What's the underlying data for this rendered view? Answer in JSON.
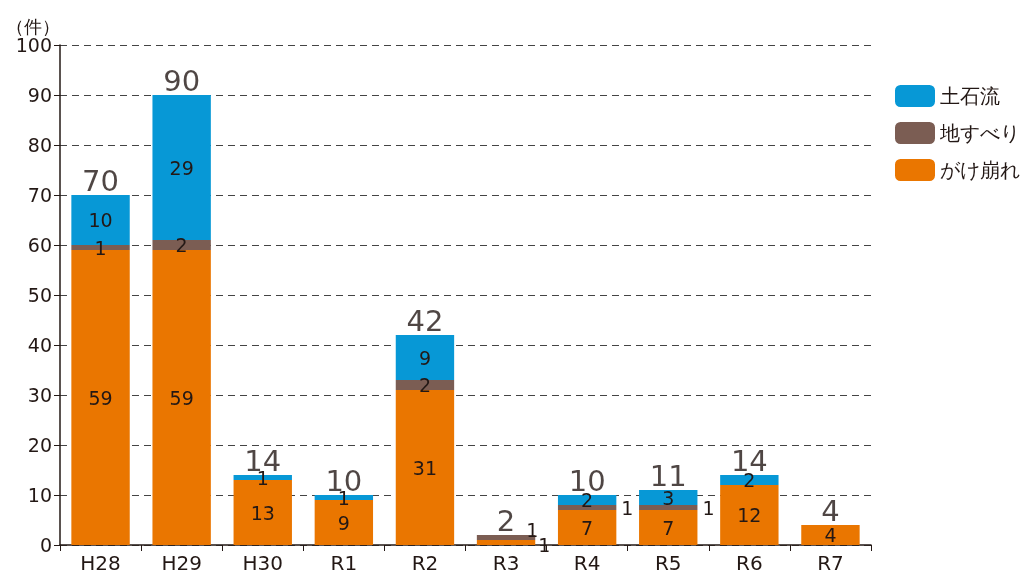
{
  "chart_data": {
    "type": "bar",
    "stacked": true,
    "ylabel": "（件）",
    "categories": [
      "H28",
      "H29",
      "H30",
      "R1",
      "R2",
      "R3",
      "R4",
      "R5",
      "R6",
      "R7"
    ],
    "series": [
      {
        "name": "がけ崩れ",
        "color": "#ea7600",
        "values": [
          59,
          59,
          13,
          9,
          31,
          1,
          7,
          7,
          12,
          4
        ],
        "value_labels": [
          "59",
          "59",
          "13",
          "9",
          "31",
          "1",
          "7",
          "7",
          "12",
          "4"
        ]
      },
      {
        "name": "地すべり",
        "color": "#7b5d53",
        "values": [
          1,
          2,
          0,
          0,
          2,
          1,
          1,
          1,
          0,
          0
        ],
        "value_labels": [
          "1",
          "2",
          null,
          null,
          "2",
          "1",
          "1",
          "1",
          null,
          null
        ]
      },
      {
        "name": "土石流",
        "color": "#0798d6",
        "values": [
          10,
          29,
          1,
          1,
          9,
          0,
          2,
          3,
          2,
          0
        ],
        "value_labels": [
          "10",
          "29",
          "1",
          "1",
          "9",
          null,
          "2",
          "3",
          "2",
          null
        ]
      }
    ],
    "totals": [
      "70",
      "90",
      "14",
      "10",
      "42",
      "2",
      "10",
      "11",
      "14",
      "4"
    ],
    "ylim": [
      0,
      100
    ],
    "yticks": [
      0,
      10,
      20,
      30,
      40,
      50,
      60,
      70,
      80,
      90,
      100
    ],
    "grid": "y",
    "legend": "right"
  }
}
